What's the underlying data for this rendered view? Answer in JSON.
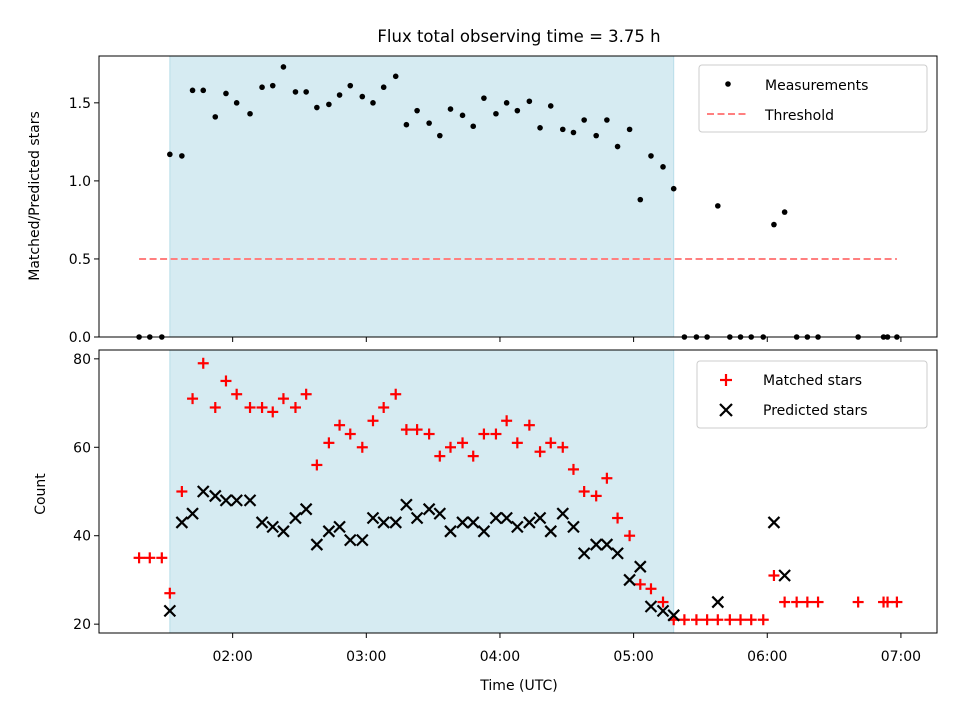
{
  "chart_data": [
    {
      "type": "scatter",
      "title": "Flux total observing time = 3.75 h",
      "ylabel": "Matched/Predicted stars",
      "ylim": [
        0,
        1.8
      ],
      "yticks": [
        0.0,
        0.5,
        1.0,
        1.5
      ],
      "ytick_labels": [
        "0.0",
        "0.5",
        "1.0",
        "1.5"
      ],
      "xlim": [
        1.0,
        7.27
      ],
      "shaded_interval": [
        1.53,
        5.3
      ],
      "shade_color": "#add8e6",
      "legend_position": "top-right",
      "series": [
        {
          "name": "Measurements",
          "marker": "dot",
          "color": "#000000",
          "x": [
            1.3,
            1.38,
            1.47,
            1.53,
            1.62,
            1.7,
            1.78,
            1.87,
            1.95,
            2.03,
            2.13,
            2.22,
            2.3,
            2.38,
            2.47,
            2.55,
            2.63,
            2.72,
            2.8,
            2.88,
            2.97,
            3.05,
            3.13,
            3.22,
            3.3,
            3.38,
            3.47,
            3.55,
            3.63,
            3.72,
            3.8,
            3.88,
            3.97,
            4.05,
            4.13,
            4.22,
            4.3,
            4.38,
            4.47,
            4.55,
            4.63,
            4.72,
            4.8,
            4.88,
            4.97,
            5.05,
            5.13,
            5.22,
            5.3,
            5.38,
            5.47,
            5.55,
            5.63,
            5.72,
            5.8,
            5.88,
            5.97,
            6.05,
            6.13,
            6.22,
            6.3,
            6.38,
            6.68,
            6.87,
            6.9,
            6.97
          ],
          "y": [
            0,
            0,
            0,
            1.17,
            1.16,
            1.58,
            1.58,
            1.41,
            1.56,
            1.5,
            1.43,
            1.6,
            1.61,
            1.73,
            1.57,
            1.57,
            1.47,
            1.49,
            1.55,
            1.61,
            1.54,
            1.5,
            1.6,
            1.67,
            1.36,
            1.45,
            1.37,
            1.29,
            1.46,
            1.42,
            1.35,
            1.53,
            1.43,
            1.5,
            1.45,
            1.51,
            1.34,
            1.48,
            1.33,
            1.31,
            1.39,
            1.29,
            1.39,
            1.22,
            1.33,
            0.88,
            1.16,
            1.09,
            0.95,
            0,
            0,
            0,
            0.84,
            0,
            0,
            0,
            0,
            0.72,
            0.8,
            0,
            0,
            0,
            0,
            0,
            0,
            0
          ]
        },
        {
          "name": "Threshold",
          "marker": "dashed-line",
          "color": "#ff7f7f",
          "x": [
            1.3,
            6.97
          ],
          "y": [
            0.5,
            0.5
          ]
        }
      ]
    },
    {
      "type": "scatter",
      "xlabel": "Time (UTC)",
      "ylabel": "Count",
      "ylim": [
        18,
        82
      ],
      "yticks": [
        20,
        40,
        60,
        80
      ],
      "ytick_labels": [
        "20",
        "40",
        "60",
        "80"
      ],
      "xlim": [
        1.0,
        7.27
      ],
      "xticks": [
        2,
        3,
        4,
        5,
        6,
        7
      ],
      "xtick_labels": [
        "02:00",
        "03:00",
        "04:00",
        "05:00",
        "06:00",
        "07:00"
      ],
      "shaded_interval": [
        1.53,
        5.3
      ],
      "shade_color": "#add8e6",
      "legend_position": "top-right",
      "series": [
        {
          "name": "Matched stars",
          "marker": "plus",
          "color": "#ff0000",
          "x": [
            1.3,
            1.38,
            1.47,
            1.53,
            1.62,
            1.7,
            1.78,
            1.87,
            1.95,
            2.03,
            2.13,
            2.22,
            2.3,
            2.38,
            2.47,
            2.55,
            2.63,
            2.72,
            2.8,
            2.88,
            2.97,
            3.05,
            3.13,
            3.22,
            3.3,
            3.38,
            3.47,
            3.55,
            3.63,
            3.72,
            3.8,
            3.88,
            3.97,
            4.05,
            4.13,
            4.22,
            4.3,
            4.38,
            4.47,
            4.55,
            4.63,
            4.72,
            4.8,
            4.88,
            4.97,
            5.05,
            5.13,
            5.22,
            5.3,
            5.38,
            5.47,
            5.55,
            5.63,
            5.72,
            5.8,
            5.88,
            5.97,
            6.05,
            6.13,
            6.22,
            6.3,
            6.38,
            6.68,
            6.87,
            6.9,
            6.97
          ],
          "y": [
            35,
            35,
            35,
            27,
            50,
            71,
            79,
            69,
            75,
            72,
            69,
            69,
            68,
            71,
            69,
            72,
            56,
            61,
            65,
            63,
            60,
            66,
            69,
            72,
            64,
            64,
            63,
            58,
            60,
            61,
            58,
            63,
            63,
            66,
            61,
            65,
            59,
            61,
            60,
            55,
            50,
            49,
            53,
            44,
            40,
            29,
            28,
            25,
            21,
            21,
            21,
            21,
            21,
            21,
            21,
            21,
            21,
            31,
            25,
            25,
            25,
            25,
            25,
            25,
            25,
            25
          ]
        },
        {
          "name": "Predicted stars",
          "marker": "x",
          "color": "#000000",
          "x": [
            1.53,
            1.62,
            1.7,
            1.78,
            1.87,
            1.95,
            2.03,
            2.13,
            2.22,
            2.3,
            2.38,
            2.47,
            2.55,
            2.63,
            2.72,
            2.8,
            2.88,
            2.97,
            3.05,
            3.13,
            3.22,
            3.3,
            3.38,
            3.47,
            3.55,
            3.63,
            3.72,
            3.8,
            3.88,
            3.97,
            4.05,
            4.13,
            4.22,
            4.3,
            4.38,
            4.47,
            4.55,
            4.63,
            4.72,
            4.8,
            4.88,
            4.97,
            5.05,
            5.13,
            5.22,
            5.3,
            5.63,
            6.05,
            6.13
          ],
          "y": [
            23,
            43,
            45,
            50,
            49,
            48,
            48,
            48,
            43,
            42,
            41,
            44,
            46,
            38,
            41,
            42,
            39,
            39,
            44,
            43,
            43,
            47,
            44,
            46,
            45,
            41,
            43,
            43,
            41,
            44,
            44,
            42,
            43,
            44,
            41,
            45,
            42,
            36,
            38,
            38,
            36,
            30,
            33,
            24,
            23,
            22,
            25,
            43,
            31
          ]
        }
      ]
    }
  ]
}
